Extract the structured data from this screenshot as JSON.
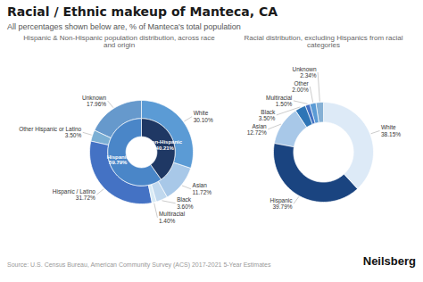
{
  "title": "Racial / Ethnic makeup of Manteca, CA",
  "subtitle": "All percentages shown below are, % of Manteca's total population",
  "annotations": [
    "Source: U.S. Census Bureau, American Community Survey (ACS) 2017-2021 5-Year Estimates",
    "Neilsberg"
  ],
  "chart_data": [
    {
      "type": "donut",
      "title": "Hispanic & Non-Hispanic population distribution, across race and origin",
      "data_labels": true,
      "series": [
        {
          "categories": [
            "White",
            "Asian",
            "Black",
            "Multiracial",
            "Hispanic / Latino",
            "Other Hispanic or Latino",
            "Unknown"
          ],
          "values": [
            30.1,
            11.72,
            3.6,
            1.4,
            31.72,
            3.5,
            17.96
          ],
          "value_labels": [
            "30.10%",
            "11.72%",
            "3.60%",
            "1.40%",
            "31.72%",
            "3.50%",
            "17.96%"
          ],
          "colors": [
            "#5b9bd5",
            "#a8c8e8",
            "#c0d8ee",
            "#d8eaf5",
            "#4472c4",
            "#7bafd4",
            "#6699cc"
          ]
        },
        {
          "categories": [
            "Non-Hispanic",
            "Hispanic"
          ],
          "values": [
            40.21,
            59.79
          ],
          "value_labels": [
            "40.21%",
            "59.79%"
          ],
          "colors": [
            "#1f3864",
            "#4a86c8"
          ]
        }
      ]
    },
    {
      "type": "donut",
      "title": "Racial distribution, excluding Hispanics from racial categories",
      "data_labels": true,
      "categories": [
        "White",
        "Hispanic",
        "Asian",
        "Black",
        "Multiracial",
        "Other",
        "Unknown"
      ],
      "values": [
        38.15,
        39.79,
        12.72,
        3.5,
        1.5,
        2.0,
        2.34
      ],
      "value_labels": [
        "38.15%",
        "39.79%",
        "12.72%",
        "3.50%",
        "1.50%",
        "2.00%",
        "2.34%"
      ],
      "colors": [
        "#ddeaf7",
        "#1a4480",
        "#a8c8e8",
        "#2e75b6",
        "#4472c4",
        "#5b9bd5",
        "#85b0d5"
      ]
    }
  ]
}
